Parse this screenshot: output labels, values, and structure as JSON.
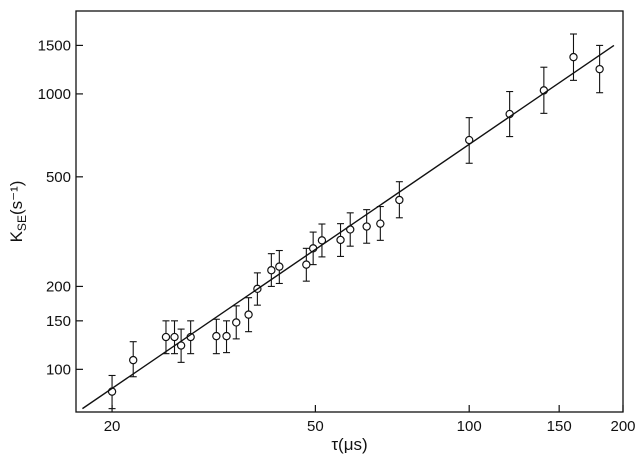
{
  "chart_data": {
    "type": "scatter",
    "title": "",
    "xlabel": "τ(μs)",
    "ylabel_main": "K",
    "ylabel_sub": "SE",
    "ylabel_unit": "(s⁻¹)",
    "x_scale": "log",
    "y_scale": "log",
    "xlim": [
      17,
      200
    ],
    "ylim": [
      70,
      2000
    ],
    "x_ticks": [
      20,
      50,
      100,
      150,
      200
    ],
    "y_ticks": [
      100,
      150,
      200,
      500,
      1000,
      1500
    ],
    "grid": false,
    "legend": "none",
    "series": [
      {
        "marker": "open-circle",
        "error_bars": true,
        "points": [
          {
            "x": 20,
            "y": 83,
            "lo": 72,
            "hi": 95
          },
          {
            "x": 22,
            "y": 108,
            "lo": 94,
            "hi": 126
          },
          {
            "x": 25.5,
            "y": 131,
            "lo": 114,
            "hi": 150
          },
          {
            "x": 26.5,
            "y": 131,
            "lo": 114,
            "hi": 150
          },
          {
            "x": 27.3,
            "y": 122,
            "lo": 106,
            "hi": 140
          },
          {
            "x": 28.5,
            "y": 131,
            "lo": 114,
            "hi": 150
          },
          {
            "x": 32,
            "y": 132,
            "lo": 114,
            "hi": 152
          },
          {
            "x": 33.5,
            "y": 132,
            "lo": 115,
            "hi": 150
          },
          {
            "x": 35,
            "y": 148,
            "lo": 129,
            "hi": 170
          },
          {
            "x": 37,
            "y": 158,
            "lo": 137,
            "hi": 182
          },
          {
            "x": 38.5,
            "y": 196,
            "lo": 171,
            "hi": 224
          },
          {
            "x": 41,
            "y": 229,
            "lo": 200,
            "hi": 263
          },
          {
            "x": 42.5,
            "y": 236,
            "lo": 205,
            "hi": 270
          },
          {
            "x": 48,
            "y": 240,
            "lo": 209,
            "hi": 275
          },
          {
            "x": 49.5,
            "y": 275,
            "lo": 240,
            "hi": 315
          },
          {
            "x": 51.5,
            "y": 294,
            "lo": 256,
            "hi": 337
          },
          {
            "x": 56,
            "y": 295,
            "lo": 257,
            "hi": 338
          },
          {
            "x": 58.5,
            "y": 322,
            "lo": 280,
            "hi": 370
          },
          {
            "x": 63,
            "y": 330,
            "lo": 287,
            "hi": 380
          },
          {
            "x": 67,
            "y": 338,
            "lo": 294,
            "hi": 390
          },
          {
            "x": 73,
            "y": 412,
            "lo": 355,
            "hi": 480
          },
          {
            "x": 100,
            "y": 680,
            "lo": 560,
            "hi": 820
          },
          {
            "x": 120,
            "y": 845,
            "lo": 700,
            "hi": 1020
          },
          {
            "x": 140,
            "y": 1030,
            "lo": 850,
            "hi": 1250
          },
          {
            "x": 160,
            "y": 1360,
            "lo": 1120,
            "hi": 1650
          },
          {
            "x": 180,
            "y": 1230,
            "lo": 1010,
            "hi": 1500
          }
        ]
      },
      {
        "style": "line",
        "x": [
          17.5,
          192
        ],
        "y": [
          72,
          1500
        ]
      }
    ]
  }
}
